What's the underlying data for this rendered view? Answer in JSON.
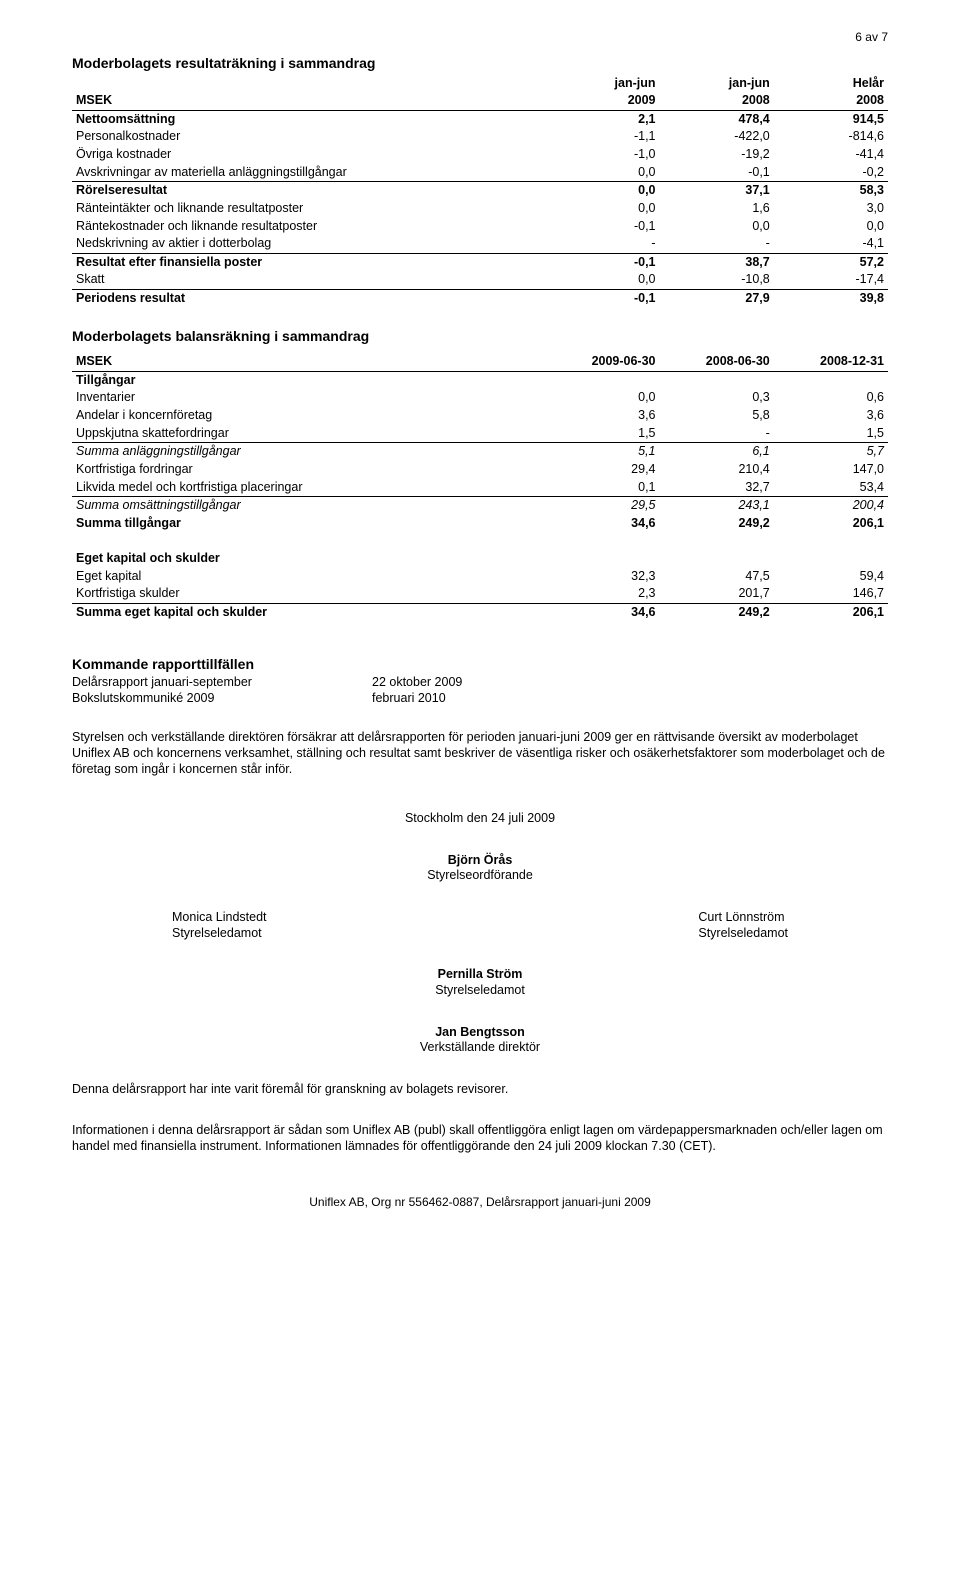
{
  "page_number": "6 av 7",
  "section1": {
    "title": "Moderbolagets resultaträkning i sammandrag",
    "header_left": "MSEK",
    "header_cols": [
      "jan-jun",
      "jan-jun",
      "Helår"
    ],
    "header_cols2": [
      "2009",
      "2008",
      "2008"
    ],
    "rows": [
      {
        "label": "Nettoomsättning",
        "vals": [
          "2,1",
          "478,4",
          "914,5"
        ],
        "bold": true
      },
      {
        "label": "Personalkostnader",
        "vals": [
          "-1,1",
          "-422,0",
          "-814,6"
        ]
      },
      {
        "label": "Övriga kostnader",
        "vals": [
          "-1,0",
          "-19,2",
          "-41,4"
        ]
      },
      {
        "label": "Avskrivningar av materiella anläggningstillgångar",
        "vals": [
          "0,0",
          "-0,1",
          "-0,2"
        ],
        "bottomline": true
      },
      {
        "label": "Rörelseresultat",
        "vals": [
          "0,0",
          "37,1",
          "58,3"
        ],
        "bold": true
      },
      {
        "label": "Ränteintäkter och liknande resultatposter",
        "vals": [
          "0,0",
          "1,6",
          "3,0"
        ]
      },
      {
        "label": "Räntekostnader och liknande resultatposter",
        "vals": [
          "-0,1",
          "0,0",
          "0,0"
        ]
      },
      {
        "label": "Nedskrivning av aktier i dotterbolag",
        "vals": [
          "-",
          "-",
          "-4,1"
        ],
        "bottomline": true
      },
      {
        "label": "Resultat efter finansiella poster",
        "vals": [
          "-0,1",
          "38,7",
          "57,2"
        ],
        "bold": true
      },
      {
        "label": "Skatt",
        "vals": [
          "0,0",
          "-10,8",
          "-17,4"
        ],
        "bottomline": true
      },
      {
        "label": "Periodens resultat",
        "vals": [
          "-0,1",
          "27,9",
          "39,8"
        ],
        "bold": true
      }
    ]
  },
  "section2": {
    "title": "Moderbolagets balansräkning i sammandrag",
    "header_left": "MSEK",
    "header_cols": [
      "2009-06-30",
      "2008-06-30",
      "2008-12-31"
    ],
    "tillgangar_label": "Tillgångar",
    "rows_tillg": [
      {
        "label": "Inventarier",
        "vals": [
          "0,0",
          "0,3",
          "0,6"
        ]
      },
      {
        "label": "Andelar i koncernföretag",
        "vals": [
          "3,6",
          "5,8",
          "3,6"
        ]
      },
      {
        "label": "Uppskjutna skattefordringar",
        "vals": [
          "1,5",
          "-",
          "1,5"
        ],
        "bottomline": true
      },
      {
        "label": "Summa anläggningstillgångar",
        "vals": [
          "5,1",
          "6,1",
          "5,7"
        ],
        "italic": true
      },
      {
        "label": "Kortfristiga fordringar",
        "vals": [
          "29,4",
          "210,4",
          "147,0"
        ]
      },
      {
        "label": "Likvida medel och kortfristiga placeringar",
        "vals": [
          "0,1",
          "32,7",
          "53,4"
        ],
        "bottomline": true
      },
      {
        "label": "Summa omsättningstillgångar",
        "vals": [
          "29,5",
          "243,1",
          "200,4"
        ],
        "italic": true
      },
      {
        "label": "Summa tillgångar",
        "vals": [
          "34,6",
          "249,2",
          "206,1"
        ],
        "bold": true
      }
    ],
    "egetkap_label": "Eget kapital och skulder",
    "rows_eget": [
      {
        "label": "Eget kapital",
        "vals": [
          "32,3",
          "47,5",
          "59,4"
        ]
      },
      {
        "label": "Kortfristiga skulder",
        "vals": [
          "2,3",
          "201,7",
          "146,7"
        ],
        "bottomline": true
      },
      {
        "label": "Summa eget kapital och skulder",
        "vals": [
          "34,6",
          "249,2",
          "206,1"
        ],
        "bold": true
      }
    ]
  },
  "reports": {
    "title": "Kommande rapporttillfällen",
    "rows": [
      {
        "label": "Delårsrapport januari-september",
        "date": "22 oktober 2009"
      },
      {
        "label": "Bokslutskommuniké 2009",
        "date": "februari 2010"
      }
    ]
  },
  "paragraph1": "Styrelsen och verkställande direktören försäkrar att delårsrapporten för perioden januari-juni 2009 ger en rättvisande översikt av moderbolaget Uniflex AB och koncernens verksamhet, ställning och resultat samt beskriver de väsentliga risker och osäkerhetsfaktorer som moderbolaget och de företag som ingår i koncernen står inför.",
  "date_place": "Stockholm den 24 juli 2009",
  "sig_chair": {
    "name": "Björn Örås",
    "role": "Styrelseordförande"
  },
  "sig_left": {
    "name": "Monica Lindstedt",
    "role": "Styrelseledamot"
  },
  "sig_right": {
    "name": "Curt Lönnström",
    "role": "Styrelseledamot"
  },
  "sig_mid": {
    "name": "Pernilla Ström",
    "role": "Styrelseledamot"
  },
  "sig_ceo": {
    "name": "Jan Bengtsson",
    "role": "Verkställande direktör"
  },
  "paragraph2": "Denna delårsrapport har inte varit föremål för granskning av bolagets revisorer.",
  "paragraph3": "Informationen i denna delårsrapport är sådan som Uniflex AB (publ) skall offentliggöra enligt lagen om värdepappersmarknaden och/eller lagen om handel med finansiella instrument. Informationen lämnades för offentliggörande den 24 juli 2009 klockan 7.30 (CET).",
  "footer": "Uniflex AB, Org nr 556462-0887, Delårsrapport januari-juni 2009"
}
